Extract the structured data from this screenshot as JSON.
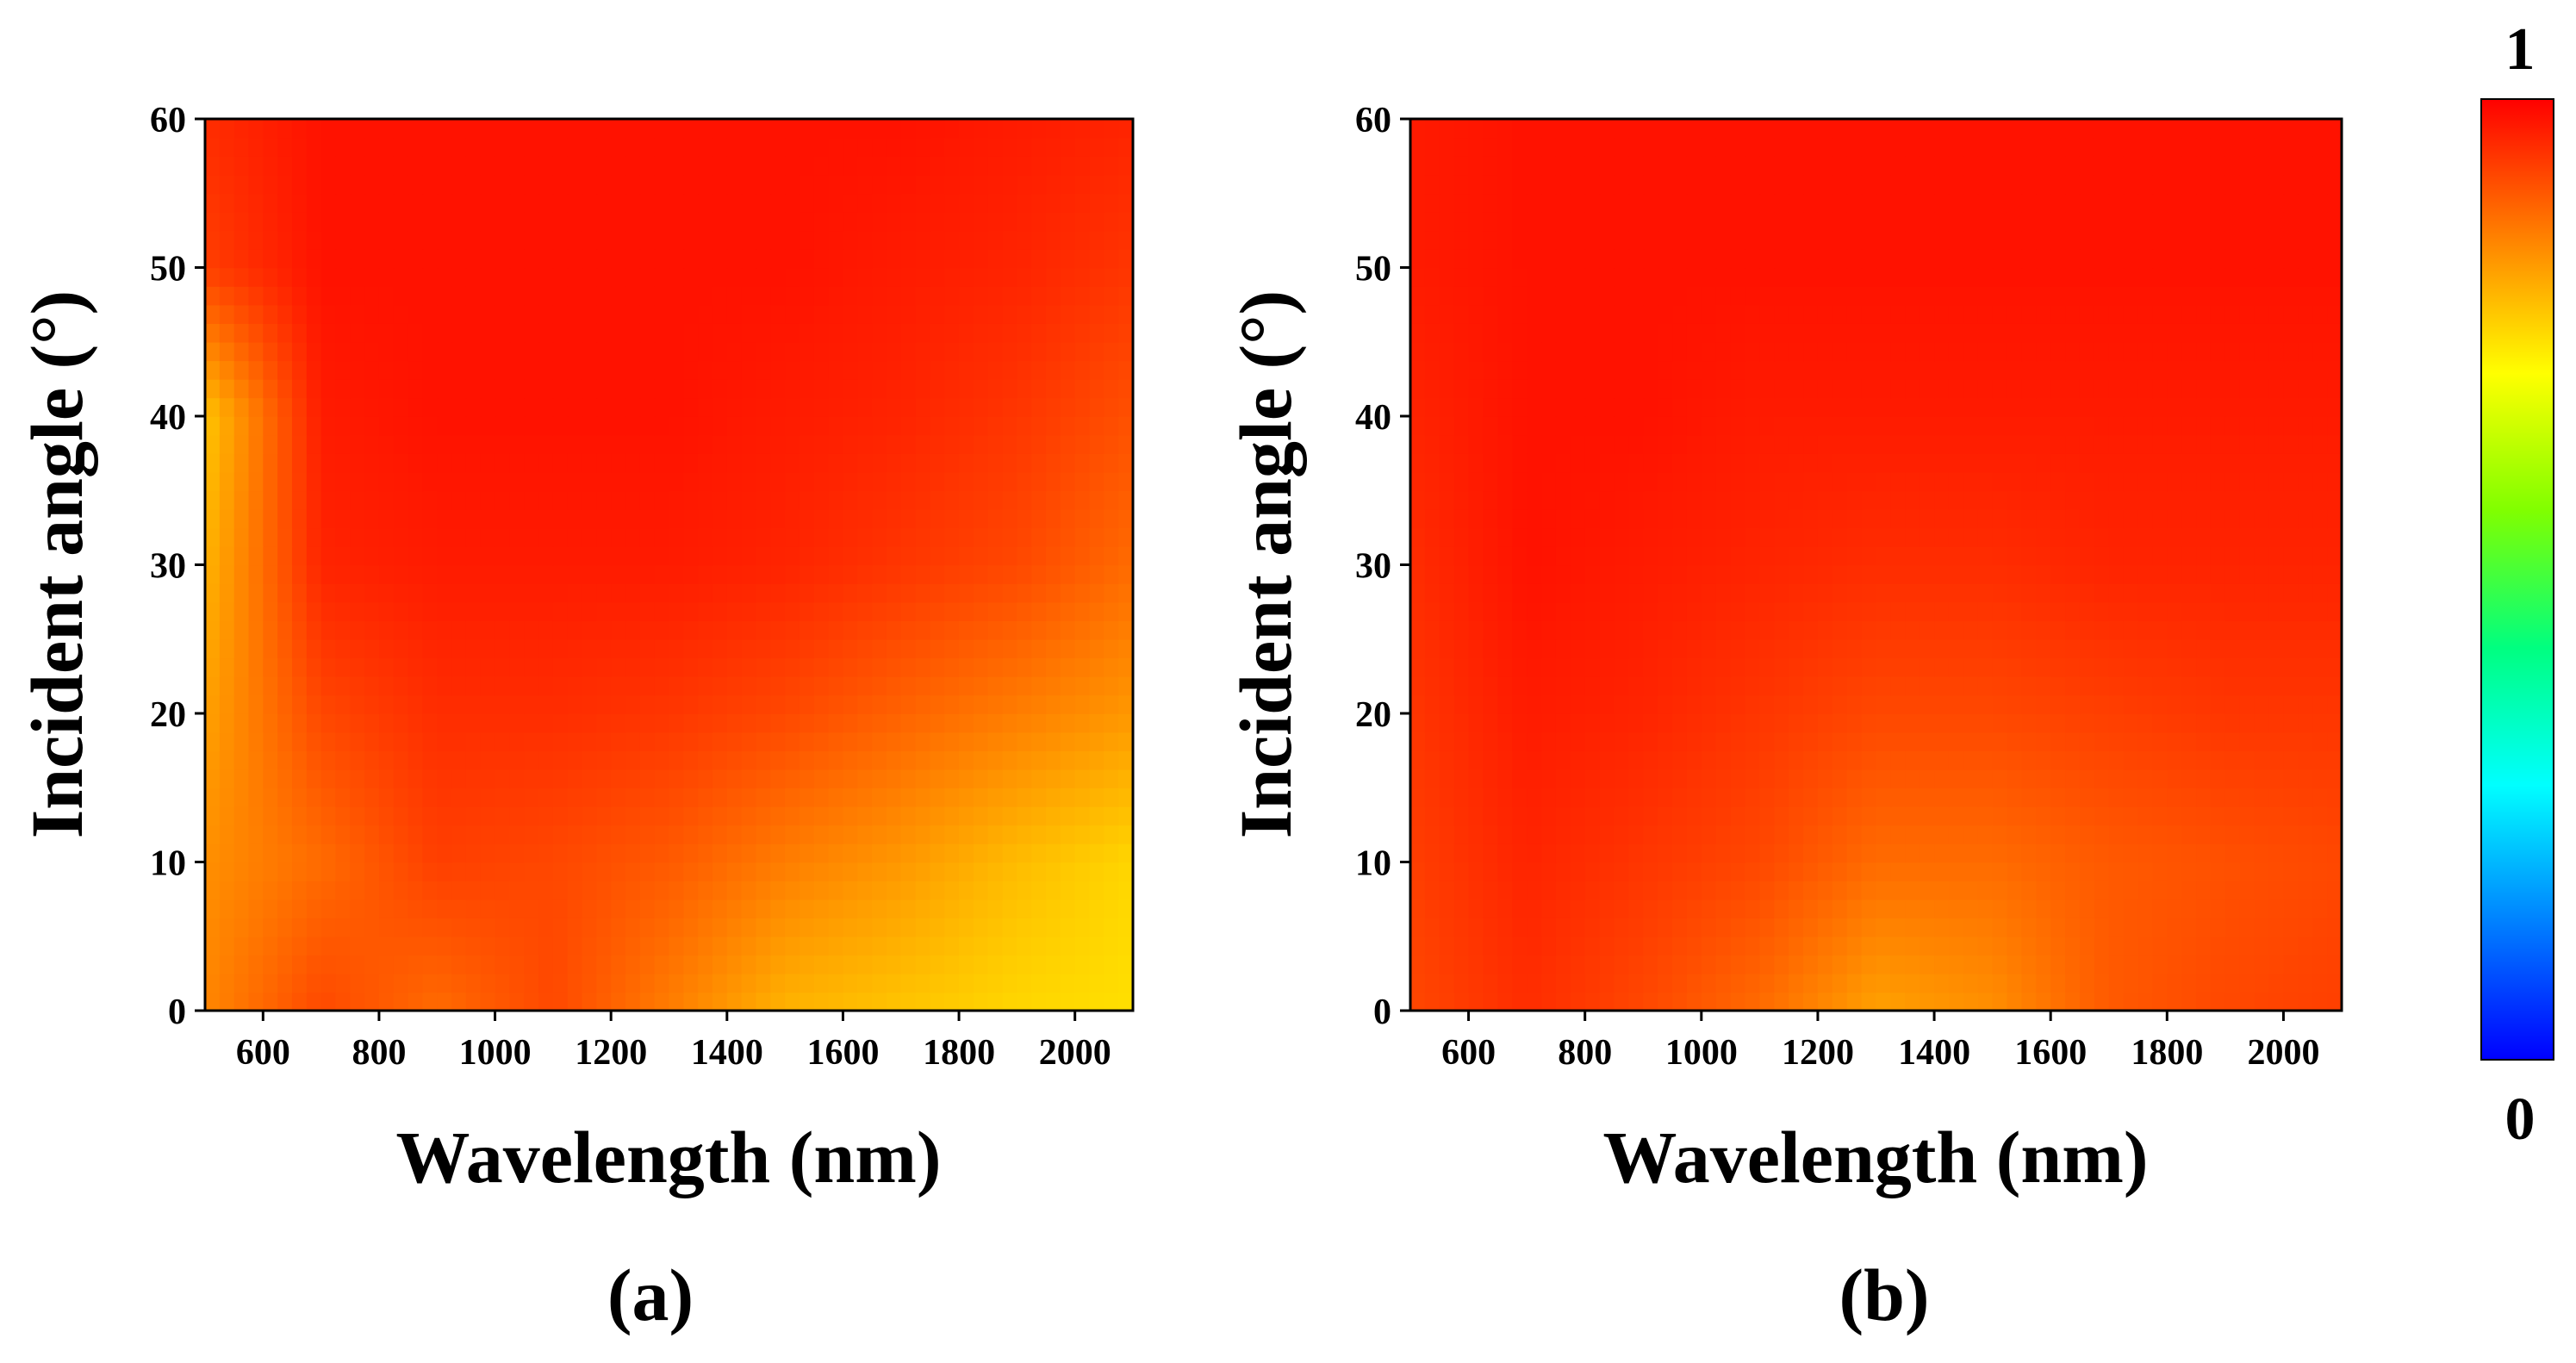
{
  "chart_data": [
    {
      "type": "heatmap",
      "panel_label": "(a)",
      "xlabel": "Wavelength (nm)",
      "ylabel": "Incident angle (°)",
      "xlim": [
        500,
        2100
      ],
      "ylim": [
        0,
        60
      ],
      "x_ticks": [
        600,
        800,
        1000,
        1200,
        1400,
        1600,
        1800,
        2000
      ],
      "y_ticks": [
        0,
        10,
        20,
        30,
        40,
        50,
        60
      ],
      "x": [
        500,
        700,
        900,
        1100,
        1300,
        1500,
        1700,
        1900,
        2100
      ],
      "y": [
        0,
        10,
        20,
        30,
        40,
        50,
        60
      ],
      "z": [
        [
          0.85,
          0.92,
          0.88,
          0.92,
          0.86,
          0.8,
          0.78,
          0.76,
          0.75
        ],
        [
          0.84,
          0.88,
          0.93,
          0.92,
          0.9,
          0.86,
          0.83,
          0.79,
          0.76
        ],
        [
          0.82,
          0.92,
          0.95,
          0.95,
          0.94,
          0.92,
          0.89,
          0.86,
          0.83
        ],
        [
          0.8,
          0.96,
          0.97,
          0.97,
          0.97,
          0.96,
          0.94,
          0.92,
          0.88
        ],
        [
          0.78,
          0.97,
          0.98,
          0.98,
          0.98,
          0.97,
          0.96,
          0.94,
          0.91
        ],
        [
          0.93,
          0.98,
          0.98,
          0.98,
          0.98,
          0.98,
          0.97,
          0.96,
          0.94
        ],
        [
          0.95,
          0.98,
          0.98,
          0.98,
          0.98,
          0.98,
          0.98,
          0.97,
          0.96
        ]
      ]
    },
    {
      "type": "heatmap",
      "panel_label": "(b)",
      "xlabel": "Wavelength (nm)",
      "ylabel": "Incident angle (°)",
      "xlim": [
        500,
        2100
      ],
      "ylim": [
        0,
        60
      ],
      "x_ticks": [
        600,
        800,
        1000,
        1200,
        1400,
        1600,
        1800,
        2000
      ],
      "y_ticks": [
        0,
        10,
        20,
        30,
        40,
        50,
        60
      ],
      "x": [
        500,
        700,
        900,
        1100,
        1300,
        1500,
        1700,
        1900,
        2100
      ],
      "y": [
        0,
        10,
        20,
        30,
        40,
        50,
        60
      ],
      "z": [
        [
          0.92,
          0.95,
          0.92,
          0.88,
          0.82,
          0.84,
          0.9,
          0.92,
          0.93
        ],
        [
          0.93,
          0.96,
          0.94,
          0.92,
          0.88,
          0.88,
          0.9,
          0.91,
          0.92
        ],
        [
          0.94,
          0.97,
          0.96,
          0.94,
          0.92,
          0.92,
          0.93,
          0.94,
          0.94
        ],
        [
          0.95,
          0.98,
          0.97,
          0.96,
          0.95,
          0.95,
          0.96,
          0.96,
          0.96
        ],
        [
          0.96,
          0.98,
          0.98,
          0.97,
          0.97,
          0.97,
          0.97,
          0.97,
          0.97
        ],
        [
          0.97,
          0.98,
          0.98,
          0.98,
          0.98,
          0.98,
          0.98,
          0.98,
          0.98
        ],
        [
          0.97,
          0.98,
          0.98,
          0.98,
          0.98,
          0.98,
          0.98,
          0.98,
          0.98
        ]
      ]
    }
  ],
  "colorbar": {
    "min_label": "0",
    "max_label": "1",
    "range": [
      0,
      1
    ],
    "colormap": "jet",
    "stops": [
      "#0000ff",
      "#0080ff",
      "#00ffff",
      "#00ff80",
      "#80ff00",
      "#ffff00",
      "#ff8000",
      "#ff0000"
    ]
  }
}
